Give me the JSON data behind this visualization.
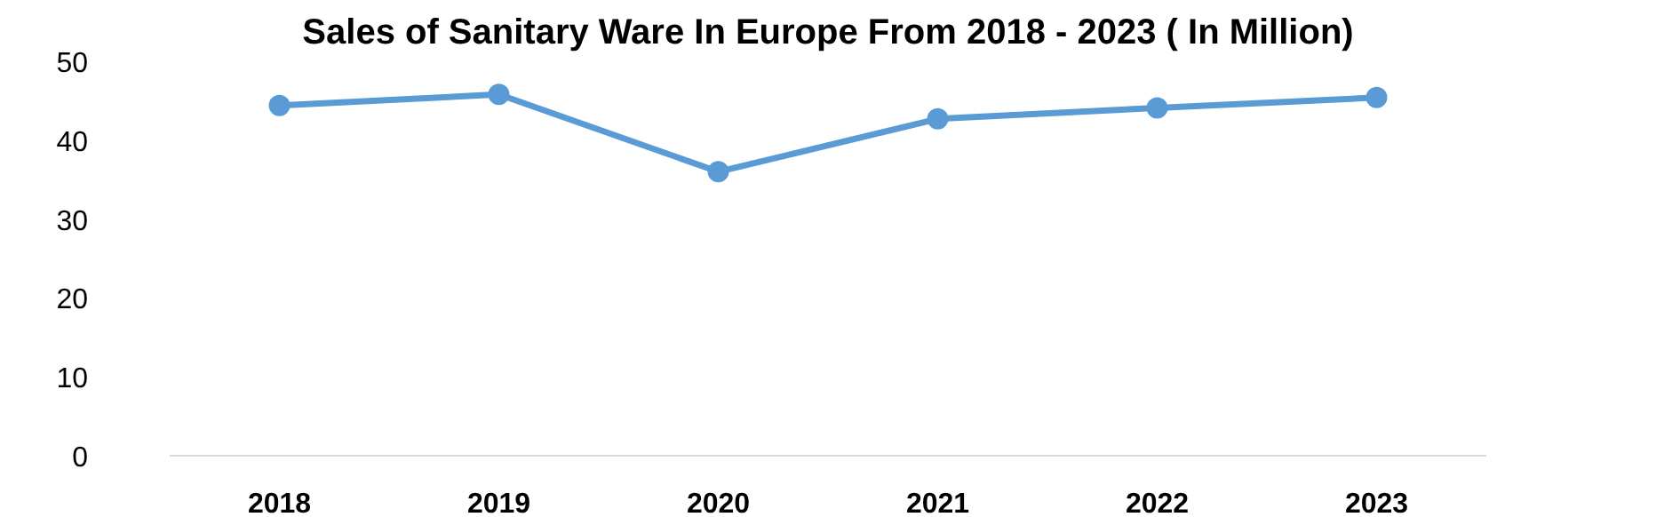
{
  "chart_data": {
    "type": "line",
    "title": "Sales of Sanitary Ware In Europe From 2018 - 2023 ( In Million)",
    "categories": [
      "2018",
      "2019",
      "2020",
      "2021",
      "2022",
      "2023"
    ],
    "series": [
      {
        "color": "#5b9bd5",
        "values": [
          44.4,
          45.8,
          36.0,
          42.7,
          44.1,
          45.4
        ]
      }
    ],
    "ylim": [
      0,
      50
    ],
    "yticks": [
      0,
      10,
      20,
      30,
      40,
      50
    ],
    "grid": false,
    "marker": "circle",
    "line_style": "solid"
  }
}
